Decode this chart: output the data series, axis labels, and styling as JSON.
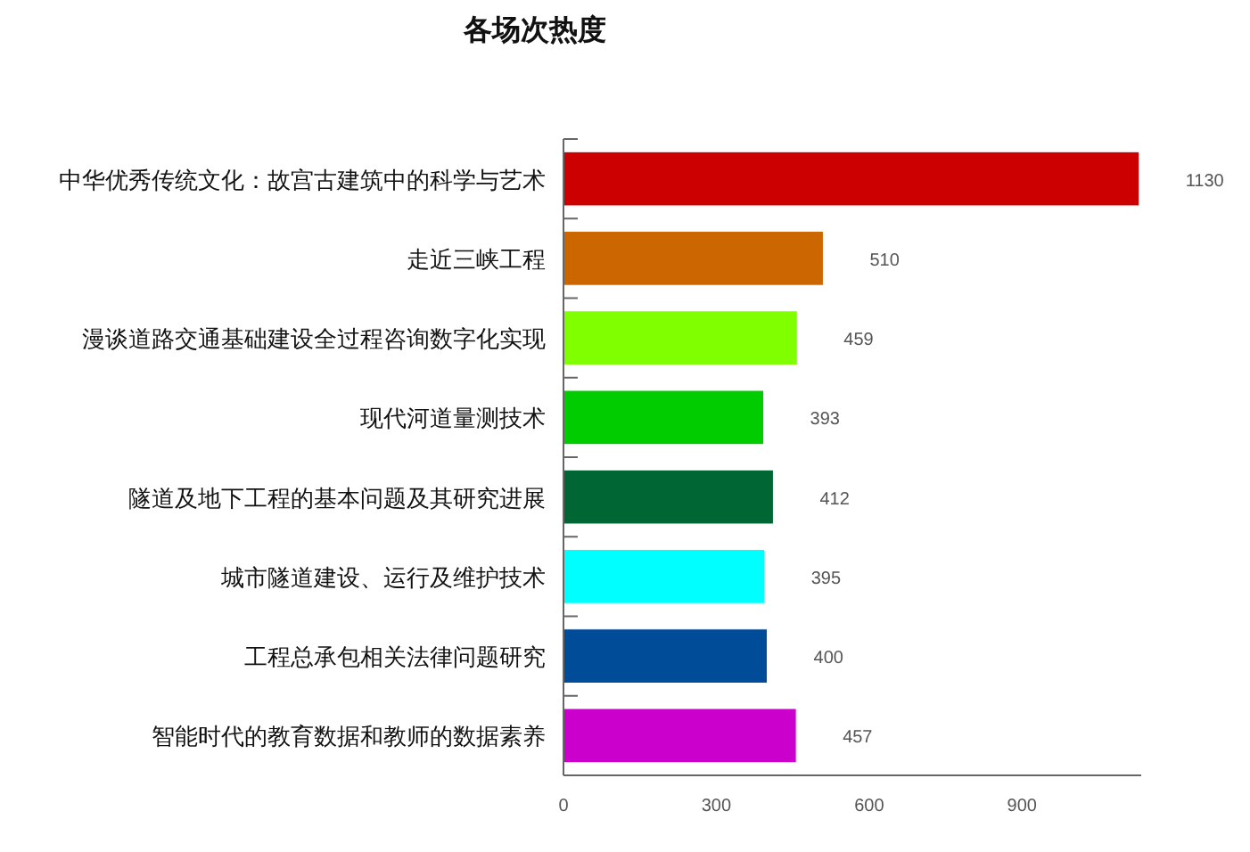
{
  "chart_data": {
    "type": "bar",
    "orientation": "horizontal",
    "title": "各场次热度",
    "categories": [
      "中华优秀传统文化：故宫古建筑中的科学与艺术",
      "走近三峡工程",
      "漫谈道路交通基础建设全过程咨询数字化实现",
      "现代河道量测技术",
      "隧道及地下工程的基本问题及其研究进展",
      "城市隧道建设、运行及维护技术",
      "工程总承包相关法律问题研究",
      "智能时代的教育数据和教师的数据素养"
    ],
    "values": [
      1130,
      510,
      459,
      393,
      412,
      395,
      400,
      457
    ],
    "colors": [
      "#cc0000",
      "#cc6600",
      "#80ff00",
      "#00cc00",
      "#006633",
      "#00ffff",
      "#004c99",
      "#cc00cc"
    ],
    "xlim": [
      0,
      1134
    ],
    "xticks": [
      0,
      300,
      600,
      900
    ],
    "data_labels": true,
    "grid": false
  }
}
